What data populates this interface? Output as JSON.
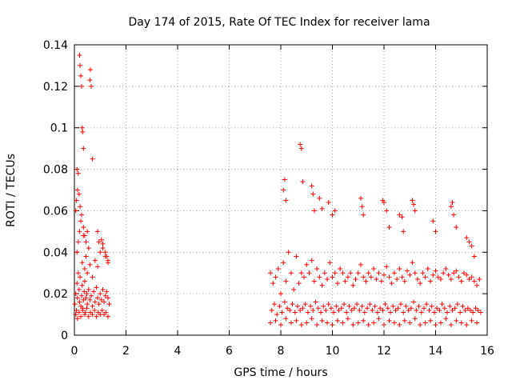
{
  "chart_data": {
    "type": "scatter",
    "title": "Day 174 of 2015, Rate Of TEC Index for receiver lama",
    "xlabel": "GPS time / hours",
    "ylabel": "ROTI / TECUs",
    "xlim": [
      0,
      16
    ],
    "ylim": [
      0,
      0.14
    ],
    "xticks": [
      0,
      2,
      4,
      6,
      8,
      10,
      12,
      14,
      16
    ],
    "xtick_labels": [
      "0",
      "2",
      "4",
      "6",
      "8",
      "10",
      "12",
      "14",
      "16"
    ],
    "yticks": [
      0,
      0.02,
      0.04,
      0.06,
      0.08,
      0.1,
      0.12,
      0.14
    ],
    "ytick_labels": [
      "0",
      "0.02",
      "0.04",
      "0.06",
      "0.08",
      "0.1",
      "0.12",
      "0.14"
    ],
    "grid": true,
    "marker": "+",
    "color": "#ff0000",
    "series": [
      {
        "name": "ROTI",
        "x": [
          0.02,
          0.05,
          0.08,
          0.1,
          0.12,
          0.15,
          0.18,
          0.2,
          0.22,
          0.25,
          0.28,
          0.3,
          0.32,
          0.35,
          0.38,
          0.4,
          0.42,
          0.45,
          0.48,
          0.5,
          0.55,
          0.6,
          0.65,
          0.7,
          0.75,
          0.8,
          0.85,
          0.9,
          0.95,
          1.0,
          1.05,
          1.1,
          1.15,
          1.2,
          1.25,
          1.3,
          1.35,
          0.1,
          0.15,
          0.2,
          0.25,
          0.3,
          0.35,
          0.4,
          0.45,
          0.5,
          0.6,
          0.7,
          0.8,
          0.9,
          1.0,
          1.1,
          1.2,
          1.3,
          0.05,
          0.12,
          0.18,
          0.25,
          0.32,
          0.4,
          0.48,
          0.55,
          0.62,
          0.7,
          0.78,
          0.85,
          0.92,
          1.0,
          1.08,
          1.15,
          1.22,
          1.3,
          0.2,
          0.22,
          0.25,
          0.28,
          0.3,
          0.32,
          0.35,
          0.6,
          0.62,
          0.65,
          0.7,
          0.1,
          0.15,
          0.12,
          0.18,
          0.05,
          0.08,
          0.22,
          0.28,
          0.35,
          0.4,
          0.45,
          0.5,
          0.55,
          1.05,
          1.1,
          1.2,
          1.25,
          1.3,
          0.9,
          0.95,
          7.6,
          7.7,
          7.8,
          7.9,
          8.0,
          8.1,
          8.2,
          8.3,
          8.4,
          8.5,
          8.6,
          8.7,
          8.8,
          8.9,
          9.0,
          9.1,
          9.2,
          9.3,
          9.4,
          9.5,
          9.6,
          9.7,
          9.8,
          9.9,
          10.0,
          10.1,
          10.2,
          10.3,
          10.4,
          10.5,
          10.6,
          10.7,
          10.8,
          10.9,
          11.0,
          11.1,
          11.2,
          11.3,
          11.4,
          11.5,
          11.6,
          11.7,
          11.8,
          11.9,
          12.0,
          12.1,
          12.2,
          12.3,
          12.4,
          12.5,
          12.6,
          12.7,
          12.8,
          12.9,
          13.0,
          13.1,
          13.2,
          13.3,
          13.4,
          13.5,
          13.6,
          13.7,
          13.8,
          13.9,
          14.0,
          14.1,
          14.2,
          14.3,
          14.4,
          14.5,
          14.6,
          14.7,
          14.8,
          14.9,
          15.0,
          15.1,
          15.2,
          15.3,
          15.4,
          15.5,
          15.6,
          15.7,
          7.65,
          7.75,
          7.85,
          7.95,
          8.05,
          8.15,
          8.25,
          8.35,
          8.45,
          8.55,
          8.65,
          8.75,
          8.85,
          8.95,
          9.05,
          9.15,
          9.25,
          9.35,
          9.45,
          9.55,
          9.65,
          9.75,
          9.85,
          9.95,
          10.05,
          10.15,
          10.25,
          10.35,
          10.45,
          10.55,
          10.65,
          10.75,
          10.85,
          10.95,
          11.05,
          11.15,
          11.25,
          11.35,
          11.45,
          11.55,
          11.65,
          11.75,
          11.85,
          11.95,
          12.05,
          12.15,
          12.25,
          12.35,
          12.45,
          12.55,
          12.65,
          12.75,
          12.85,
          12.95,
          13.05,
          13.15,
          13.25,
          13.35,
          13.45,
          13.55,
          13.65,
          13.75,
          13.85,
          13.95,
          14.05,
          14.15,
          14.25,
          14.35,
          14.45,
          14.55,
          14.65,
          14.75,
          14.85,
          14.95,
          15.05,
          15.15,
          15.25,
          15.35,
          15.45,
          15.55,
          15.65,
          15.75,
          7.6,
          7.8,
          8.0,
          8.2,
          8.4,
          8.6,
          8.8,
          9.0,
          9.2,
          9.4,
          9.6,
          9.8,
          10.0,
          10.2,
          10.4,
          10.6,
          10.8,
          11.0,
          11.2,
          11.4,
          11.6,
          11.8,
          12.0,
          12.2,
          12.4,
          12.6,
          12.8,
          13.0,
          13.2,
          13.4,
          13.6,
          13.8,
          14.0,
          14.2,
          14.4,
          14.6,
          14.8,
          15.0,
          15.2,
          15.4,
          15.6,
          8.1,
          8.15,
          8.2,
          8.75,
          8.8,
          8.85,
          9.2,
          9.25,
          9.3,
          9.5,
          9.6,
          9.85,
          10.0,
          10.1,
          11.1,
          11.15,
          11.2,
          11.95,
          12.0,
          12.1,
          12.2,
          12.6,
          12.7,
          12.75,
          13.1,
          13.15,
          13.2,
          13.9,
          14.0,
          14.6,
          14.65,
          14.7,
          14.8,
          15.2,
          15.3,
          15.4,
          15.5
        ],
        "y": [
          0.015,
          0.02,
          0.012,
          0.025,
          0.018,
          0.03,
          0.022,
          0.016,
          0.028,
          0.014,
          0.019,
          0.024,
          0.013,
          0.017,
          0.021,
          0.026,
          0.011,
          0.018,
          0.02,
          0.015,
          0.022,
          0.017,
          0.019,
          0.014,
          0.021,
          0.016,
          0.023,
          0.018,
          0.015,
          0.02,
          0.017,
          0.022,
          0.016,
          0.019,
          0.021,
          0.018,
          0.015,
          0.04,
          0.045,
          0.05,
          0.055,
          0.035,
          0.048,
          0.032,
          0.038,
          0.03,
          0.034,
          0.028,
          0.036,
          0.033,
          0.04,
          0.042,
          0.038,
          0.035,
          0.01,
          0.008,
          0.011,
          0.009,
          0.012,
          0.01,
          0.013,
          0.009,
          0.011,
          0.01,
          0.012,
          0.009,
          0.011,
          0.01,
          0.012,
          0.01,
          0.011,
          0.009,
          0.135,
          0.13,
          0.125,
          0.12,
          0.1,
          0.098,
          0.09,
          0.123,
          0.128,
          0.12,
          0.085,
          0.08,
          0.078,
          0.07,
          0.068,
          0.06,
          0.065,
          0.062,
          0.058,
          0.052,
          0.048,
          0.045,
          0.05,
          0.042,
          0.046,
          0.044,
          0.04,
          0.038,
          0.036,
          0.05,
          0.045,
          0.03,
          0.025,
          0.028,
          0.032,
          0.02,
          0.035,
          0.026,
          0.04,
          0.03,
          0.022,
          0.038,
          0.025,
          0.03,
          0.028,
          0.034,
          0.03,
          0.036,
          0.026,
          0.032,
          0.028,
          0.024,
          0.03,
          0.027,
          0.035,
          0.028,
          0.03,
          0.025,
          0.032,
          0.03,
          0.026,
          0.028,
          0.03,
          0.024,
          0.027,
          0.03,
          0.034,
          0.028,
          0.026,
          0.03,
          0.028,
          0.032,
          0.027,
          0.03,
          0.026,
          0.029,
          0.033,
          0.028,
          0.025,
          0.03,
          0.027,
          0.032,
          0.028,
          0.026,
          0.031,
          0.029,
          0.035,
          0.03,
          0.027,
          0.025,
          0.03,
          0.028,
          0.032,
          0.026,
          0.029,
          0.031,
          0.028,
          0.027,
          0.03,
          0.032,
          0.029,
          0.027,
          0.03,
          0.031,
          0.028,
          0.026,
          0.03,
          0.029,
          0.027,
          0.028,
          0.026,
          0.024,
          0.027,
          0.012,
          0.015,
          0.01,
          0.014,
          0.011,
          0.016,
          0.013,
          0.012,
          0.015,
          0.011,
          0.014,
          0.012,
          0.013,
          0.015,
          0.011,
          0.014,
          0.012,
          0.016,
          0.013,
          0.011,
          0.014,
          0.012,
          0.015,
          0.013,
          0.011,
          0.014,
          0.012,
          0.013,
          0.015,
          0.011,
          0.014,
          0.012,
          0.013,
          0.015,
          0.012,
          0.014,
          0.011,
          0.013,
          0.015,
          0.012,
          0.014,
          0.011,
          0.013,
          0.012,
          0.015,
          0.013,
          0.011,
          0.014,
          0.012,
          0.013,
          0.015,
          0.011,
          0.014,
          0.012,
          0.013,
          0.016,
          0.012,
          0.014,
          0.011,
          0.013,
          0.015,
          0.012,
          0.014,
          0.011,
          0.013,
          0.012,
          0.015,
          0.013,
          0.011,
          0.014,
          0.012,
          0.013,
          0.015,
          0.011,
          0.014,
          0.012,
          0.013,
          0.012,
          0.011,
          0.013,
          0.012,
          0.011,
          0.006,
          0.007,
          0.005,
          0.008,
          0.006,
          0.007,
          0.005,
          0.006,
          0.008,
          0.005,
          0.007,
          0.006,
          0.005,
          0.007,
          0.006,
          0.008,
          0.005,
          0.006,
          0.007,
          0.005,
          0.006,
          0.008,
          0.005,
          0.007,
          0.006,
          0.005,
          0.007,
          0.006,
          0.008,
          0.005,
          0.006,
          0.007,
          0.005,
          0.006,
          0.008,
          0.005,
          0.007,
          0.006,
          0.005,
          0.007,
          0.006,
          0.07,
          0.075,
          0.065,
          0.092,
          0.09,
          0.074,
          0.072,
          0.068,
          0.06,
          0.066,
          0.061,
          0.064,
          0.058,
          0.06,
          0.066,
          0.062,
          0.058,
          0.065,
          0.064,
          0.06,
          0.052,
          0.058,
          0.057,
          0.05,
          0.065,
          0.063,
          0.06,
          0.055,
          0.05,
          0.062,
          0.064,
          0.058,
          0.052,
          0.047,
          0.045,
          0.043,
          0.038
        ]
      }
    ]
  }
}
